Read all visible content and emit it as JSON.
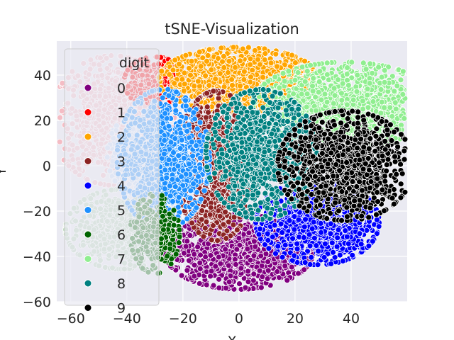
{
  "chart_data": {
    "type": "scatter",
    "title": "tSNE-Visualization",
    "xlabel": "X",
    "ylabel": "Y",
    "xlim": [
      -65,
      60
    ],
    "ylim": [
      -60,
      55
    ],
    "xticks": [
      -60,
      -40,
      -20,
      0,
      20,
      40
    ],
    "yticks": [
      -60,
      -40,
      -20,
      0,
      20,
      40
    ],
    "grid": true,
    "legend": {
      "title": "digit",
      "placement": "upper-left",
      "entries": [
        "0",
        "1",
        "2",
        "3",
        "4",
        "5",
        "6",
        "7",
        "8",
        "9"
      ]
    },
    "series": [
      {
        "name": "0",
        "color": "#800080",
        "cx": 0,
        "cy": -38,
        "sx": 12,
        "sy": 7.5,
        "n": 1200
      },
      {
        "name": "1",
        "color": "#ff0000",
        "cx": -30,
        "cy": 37,
        "sx": 5,
        "sy": 5,
        "n": 350
      },
      {
        "name": "2",
        "color": "#ffa500",
        "cx": 0,
        "cy": 38,
        "sx": 13,
        "sy": 6.5,
        "n": 1200
      },
      {
        "name": "3",
        "color": "#8b2323",
        "cx": -8,
        "cy": 0,
        "sx": 6.5,
        "sy": 15,
        "n": 1000
      },
      {
        "name": "4",
        "color": "#0000ff",
        "cx": 28,
        "cy": -25,
        "sx": 10,
        "sy": 8.5,
        "n": 1100
      },
      {
        "name": "5",
        "color": "#1e90ff",
        "cx": -27,
        "cy": 3,
        "sx": 7.5,
        "sy": 14,
        "n": 1000
      },
      {
        "name": "6",
        "color": "#006400",
        "cx": -30,
        "cy": -30,
        "sx": 4,
        "sy": 8,
        "n": 300
      },
      {
        "name": "7",
        "color": "#90ee90",
        "cx": 38,
        "cy": 27,
        "sx": 15,
        "sy": 8.5,
        "n": 1200
      },
      {
        "name": "8",
        "color": "#008080",
        "cx": 8,
        "cy": 5,
        "sx": 9,
        "sy": 13,
        "n": 1000
      },
      {
        "name": "9",
        "color": "#000000",
        "cx": 38,
        "cy": 0,
        "sx": 11,
        "sy": 11,
        "n": 1100
      }
    ],
    "extra_regions": [
      {
        "series": "1",
        "color": "#f4bcc4",
        "cx": -45,
        "cy": 20,
        "sx": 10,
        "sy": 13,
        "n": 900
      },
      {
        "series": "6",
        "color": "#b8d8b8",
        "cx": -42,
        "cy": -28,
        "sx": 9,
        "sy": 8,
        "n": 700
      },
      {
        "series": "5",
        "color": "#c8dcf8",
        "cx": -36,
        "cy": 5,
        "sx": 5,
        "sy": 8,
        "n": 300
      }
    ]
  }
}
